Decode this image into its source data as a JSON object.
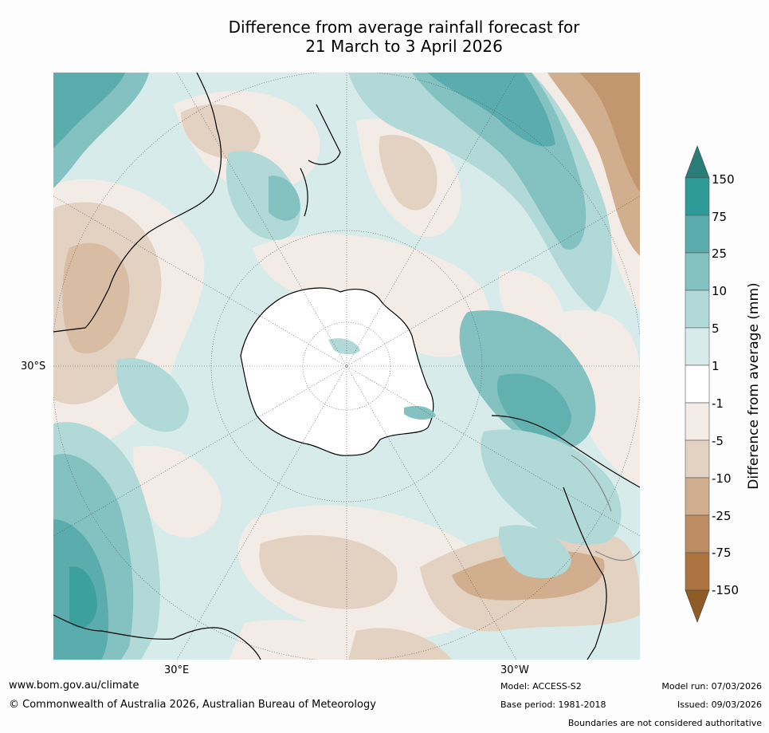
{
  "title": {
    "line1": "Difference from average rainfall forecast for",
    "line2": "21 March to 3 April 2026"
  },
  "map": {
    "lat_label": "30°S",
    "lon_labels": [
      "30°E",
      "30°W"
    ]
  },
  "colorbar": {
    "label": "Difference from average (mm)",
    "ticks": [
      "150",
      "75",
      "25",
      "10",
      "5",
      "1",
      "-1",
      "-5",
      "-10",
      "-25",
      "-75",
      "-150"
    ],
    "colors": {
      "wet_extreme": "#2a7c78",
      "wet_150": "#2f9b99",
      "wet_75": "#5aacad",
      "wet_25": "#84c2c2",
      "wet_10": "#b0d9d7",
      "wet_5": "#d7ebea",
      "neutral": "#ffffff",
      "dry_1": "#f3ece6",
      "dry_5": "#e3d2c2",
      "dry_10": "#d0ae8e",
      "dry_25": "#bc8d62",
      "dry_75": "#ab7441",
      "dry_extreme": "#8f5b26"
    }
  },
  "footer": {
    "website": "www.bom.gov.au/climate",
    "copyright": "© Commonwealth of Australia 2026, Australian Bureau of Meteorology",
    "model": "Model: ACCESS-S2",
    "base_period": "Base period: 1981-2018",
    "model_run": "Model run: 07/03/2026",
    "issued": "Issued: 09/03/2026",
    "disclaimer": "Boundaries are not considered authoritative"
  }
}
